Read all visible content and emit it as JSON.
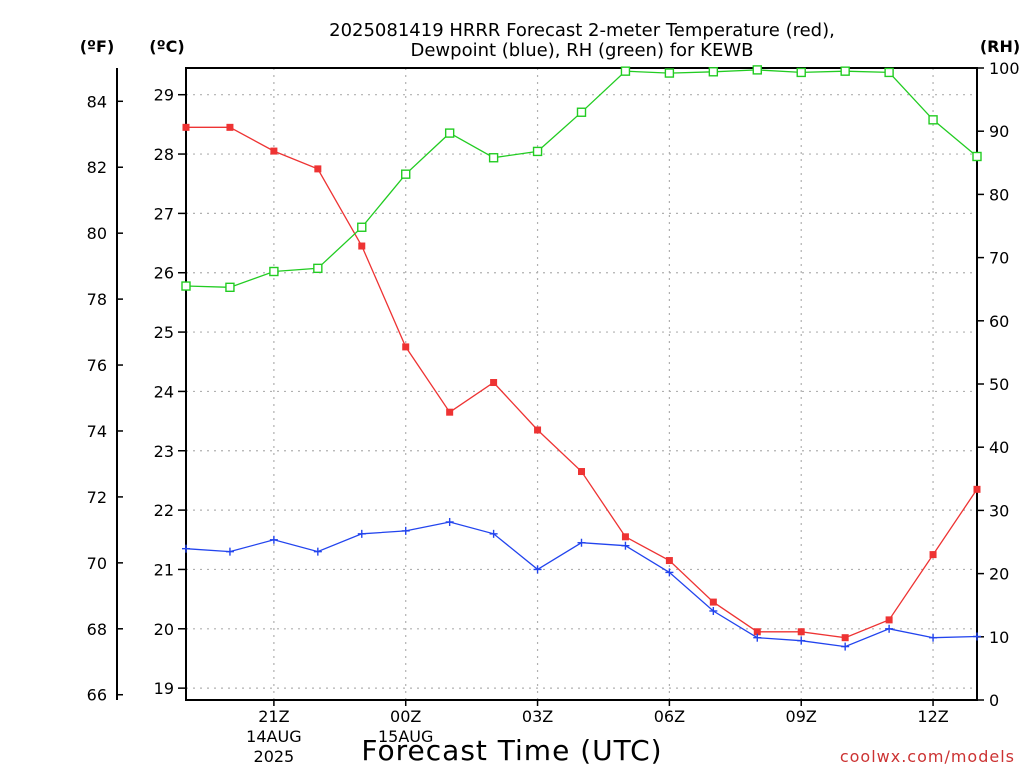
{
  "chart_data": {
    "type": "line",
    "title_lines": [
      "2025081419 HRRR Forecast 2-meter Temperature (red),",
      "Dewpoint (blue), RH (green) for KEWB"
    ],
    "units": {
      "fahrenheit": "(ºF)",
      "celsius": "(ºC)",
      "rh": "(RH)"
    },
    "xlabel": "Forecast Time (UTC)",
    "watermark": "coolwx.com/models",
    "x_hours": [
      19,
      20,
      21,
      22,
      23,
      24,
      25,
      26,
      27,
      28,
      29,
      30,
      31,
      32,
      33,
      34,
      35,
      36,
      37
    ],
    "xlim": [
      19,
      37
    ],
    "x_ticks": [
      {
        "hour": 21,
        "label": "21Z",
        "sub1": "14AUG",
        "sub2": "2025"
      },
      {
        "hour": 24,
        "label": "00Z",
        "sub1": "15AUG",
        "sub2": ""
      },
      {
        "hour": 27,
        "label": "03Z",
        "sub1": "",
        "sub2": ""
      },
      {
        "hour": 30,
        "label": "06Z",
        "sub1": "",
        "sub2": ""
      },
      {
        "hour": 33,
        "label": "09Z",
        "sub1": "",
        "sub2": ""
      },
      {
        "hour": 36,
        "label": "12Z",
        "sub1": "",
        "sub2": ""
      }
    ],
    "y_celsius": {
      "ylim": [
        18.8,
        29.45
      ],
      "ticks": [
        {
          "v": 19,
          "label": "19"
        },
        {
          "v": 20,
          "label": "20"
        },
        {
          "v": 21,
          "label": "21"
        },
        {
          "v": 22,
          "label": "22"
        },
        {
          "v": 23,
          "label": "23"
        },
        {
          "v": 24,
          "label": "24"
        },
        {
          "v": 25,
          "label": "25"
        },
        {
          "v": 26,
          "label": "26"
        },
        {
          "v": 27,
          "label": "27"
        },
        {
          "v": 28,
          "label": "28"
        },
        {
          "v": 29,
          "label": "29"
        }
      ]
    },
    "y_fahrenheit": {
      "ticks": [
        {
          "v": 66,
          "label": "66"
        },
        {
          "v": 68,
          "label": "68"
        },
        {
          "v": 70,
          "label": "70"
        },
        {
          "v": 72,
          "label": "72"
        },
        {
          "v": 74,
          "label": "74"
        },
        {
          "v": 76,
          "label": "76"
        },
        {
          "v": 78,
          "label": "78"
        },
        {
          "v": 80,
          "label": "80"
        },
        {
          "v": 82,
          "label": "82"
        },
        {
          "v": 84,
          "label": "84"
        }
      ]
    },
    "y_rh": {
      "ylim": [
        0,
        100
      ],
      "ticks": [
        {
          "v": 0,
          "label": "0"
        },
        {
          "v": 10,
          "label": "10"
        },
        {
          "v": 20,
          "label": "20"
        },
        {
          "v": 30,
          "label": "30"
        },
        {
          "v": 40,
          "label": "40"
        },
        {
          "v": 50,
          "label": "50"
        },
        {
          "v": 60,
          "label": "60"
        },
        {
          "v": 70,
          "label": "70"
        },
        {
          "v": 80,
          "label": "80"
        },
        {
          "v": 90,
          "label": "90"
        },
        {
          "v": 100,
          "label": "100"
        }
      ]
    },
    "grid": true,
    "series": [
      {
        "name": "Temperature",
        "color": "#ee3333",
        "axis": "celsius",
        "marker": "filled-square",
        "values": [
          28.45,
          28.45,
          28.05,
          27.75,
          26.45,
          24.75,
          23.65,
          24.15,
          23.35,
          22.65,
          21.55,
          21.15,
          20.45,
          19.95,
          19.95,
          19.85,
          20.15,
          21.25,
          22.35
        ]
      },
      {
        "name": "Dewpoint",
        "color": "#2244ee",
        "axis": "celsius",
        "marker": "plus",
        "values": [
          21.35,
          21.3,
          21.5,
          21.3,
          21.6,
          21.65,
          21.8,
          21.6,
          21.0,
          21.45,
          21.4,
          20.95,
          20.3,
          19.85,
          19.8,
          19.7,
          20.0,
          19.85,
          19.87
        ]
      },
      {
        "name": "RH",
        "color": "#22cc22",
        "axis": "rh",
        "marker": "open-square",
        "values": [
          65.5,
          65.3,
          67.8,
          68.3,
          74.8,
          83.2,
          89.7,
          85.8,
          86.8,
          93.0,
          99.5,
          99.2,
          99.4,
          99.7,
          99.3,
          99.5,
          99.3,
          91.8,
          86.0
        ]
      }
    ]
  }
}
